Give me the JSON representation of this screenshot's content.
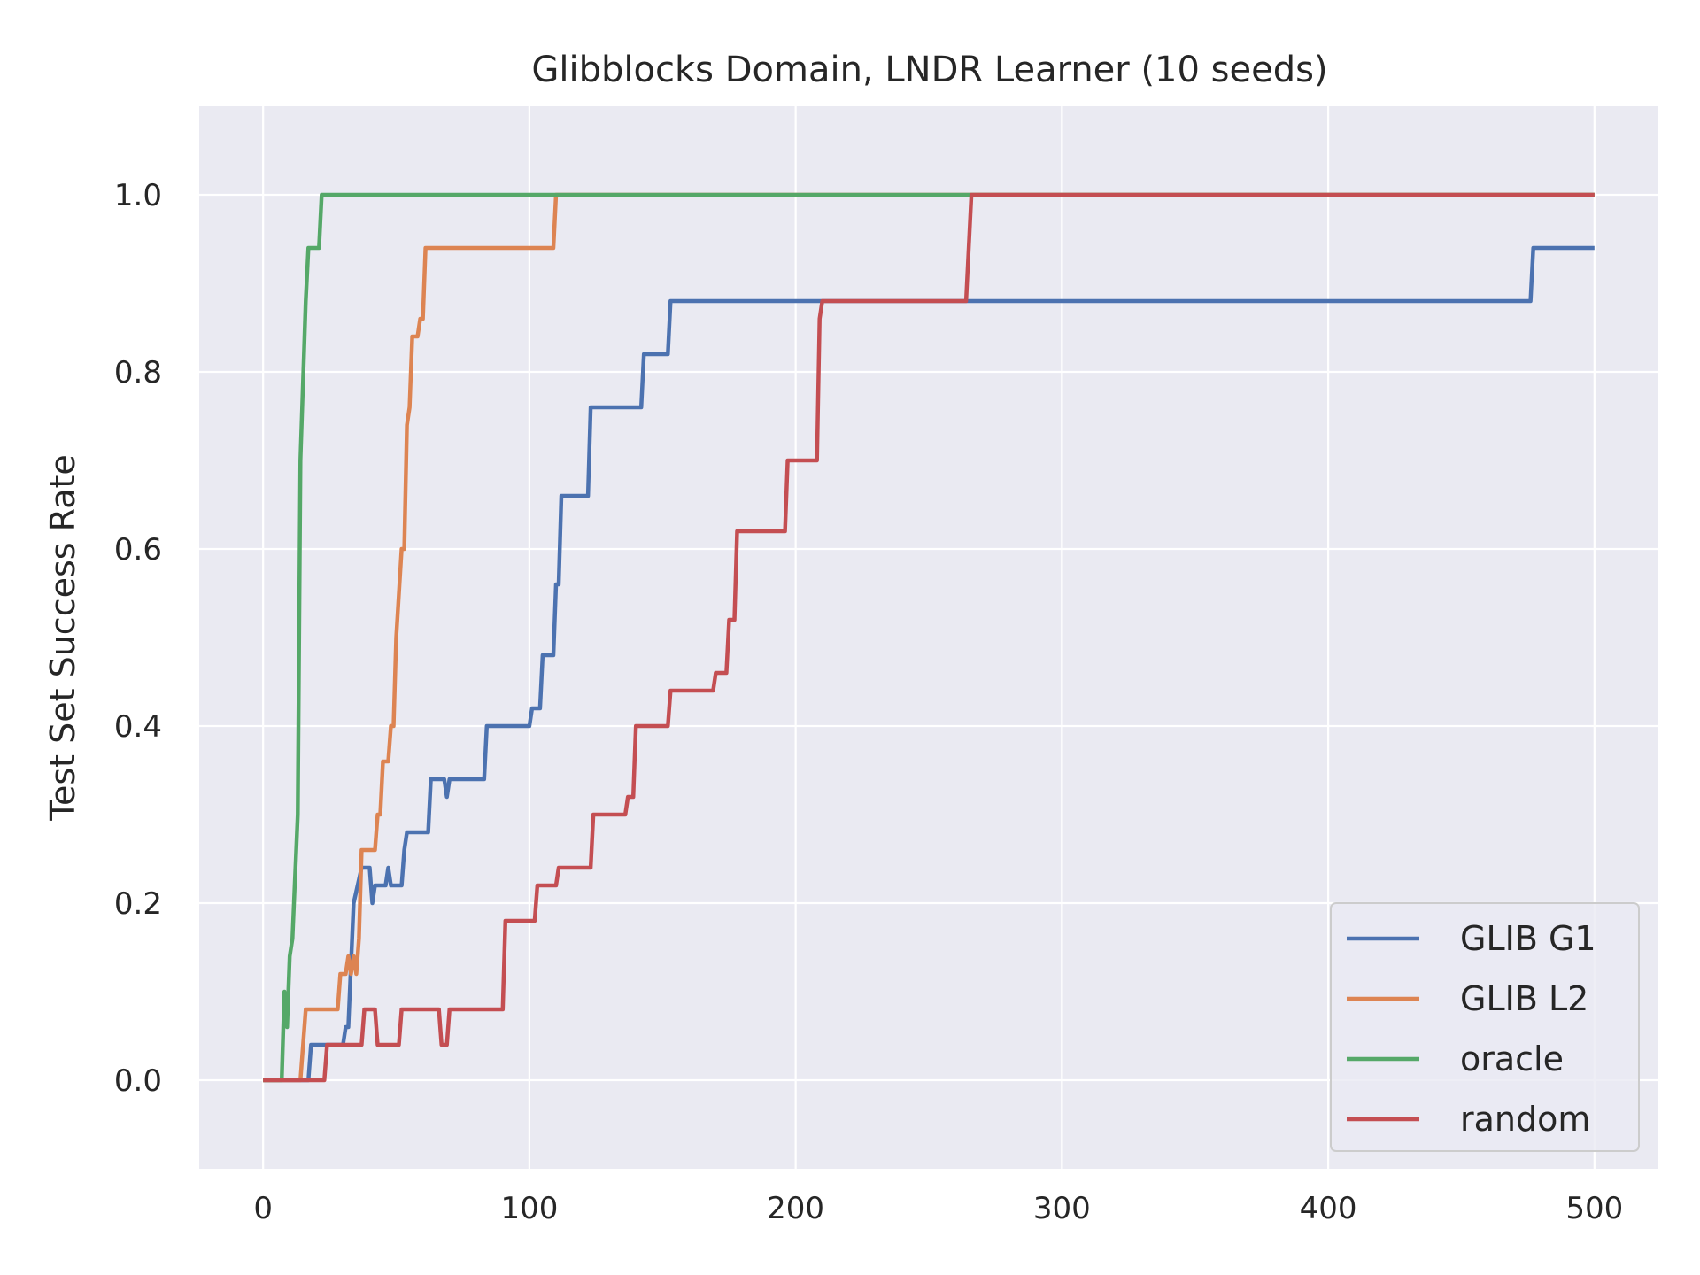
{
  "chart_data": {
    "type": "line",
    "title": "Glibblocks Domain, LNDR Learner (10 seeds)",
    "xlabel": "",
    "ylabel": "Test Set Success Rate",
    "xlim": [
      -24,
      524
    ],
    "ylim": [
      -0.1,
      1.1
    ],
    "xticks": [
      "0",
      "100",
      "200",
      "300",
      "400",
      "500"
    ],
    "yticks": [
      "0.0",
      "0.2",
      "0.4",
      "0.6",
      "0.8",
      "1.0"
    ],
    "grid": true,
    "legend_position": "bottom-right",
    "series": [
      {
        "name": "GLIB G1",
        "color": "#4c72b0",
        "points": [
          [
            0,
            0
          ],
          [
            17,
            0
          ],
          [
            18,
            0.04
          ],
          [
            30,
            0.04
          ],
          [
            31,
            0.06
          ],
          [
            32,
            0.06
          ],
          [
            34,
            0.2
          ],
          [
            37,
            0.24
          ],
          [
            40,
            0.24
          ],
          [
            41,
            0.2
          ],
          [
            42,
            0.22
          ],
          [
            46,
            0.22
          ],
          [
            47,
            0.24
          ],
          [
            48,
            0.22
          ],
          [
            52,
            0.22
          ],
          [
            53,
            0.26
          ],
          [
            54,
            0.28
          ],
          [
            62,
            0.28
          ],
          [
            63,
            0.34
          ],
          [
            68,
            0.34
          ],
          [
            69,
            0.32
          ],
          [
            70,
            0.34
          ],
          [
            83,
            0.34
          ],
          [
            84,
            0.4
          ],
          [
            100,
            0.4
          ],
          [
            101,
            0.42
          ],
          [
            104,
            0.42
          ],
          [
            105,
            0.48
          ],
          [
            109,
            0.48
          ],
          [
            110,
            0.56
          ],
          [
            111,
            0.56
          ],
          [
            112,
            0.66
          ],
          [
            122,
            0.66
          ],
          [
            123,
            0.76
          ],
          [
            142,
            0.76
          ],
          [
            143,
            0.82
          ],
          [
            152,
            0.82
          ],
          [
            153,
            0.88
          ],
          [
            476,
            0.88
          ],
          [
            477,
            0.94
          ],
          [
            500,
            0.94
          ]
        ]
      },
      {
        "name": "GLIB L2",
        "color": "#dd8452",
        "points": [
          [
            0,
            0
          ],
          [
            14,
            0
          ],
          [
            16,
            0.08
          ],
          [
            28,
            0.08
          ],
          [
            29,
            0.12
          ],
          [
            31,
            0.12
          ],
          [
            32,
            0.14
          ],
          [
            33,
            0.12
          ],
          [
            34,
            0.14
          ],
          [
            35,
            0.12
          ],
          [
            36,
            0.16
          ],
          [
            37,
            0.26
          ],
          [
            42,
            0.26
          ],
          [
            43,
            0.3
          ],
          [
            44,
            0.3
          ],
          [
            45,
            0.36
          ],
          [
            47,
            0.36
          ],
          [
            48,
            0.4
          ],
          [
            49,
            0.4
          ],
          [
            50,
            0.5
          ],
          [
            52,
            0.6
          ],
          [
            53,
            0.6
          ],
          [
            54,
            0.74
          ],
          [
            55,
            0.76
          ],
          [
            56,
            0.84
          ],
          [
            58,
            0.84
          ],
          [
            59,
            0.86
          ],
          [
            60,
            0.86
          ],
          [
            61,
            0.94
          ],
          [
            109,
            0.94
          ],
          [
            110,
            1.0
          ],
          [
            500,
            1.0
          ]
        ]
      },
      {
        "name": "oracle",
        "color": "#55a868",
        "points": [
          [
            0,
            0
          ],
          [
            7,
            0
          ],
          [
            8,
            0.1
          ],
          [
            9,
            0.06
          ],
          [
            10,
            0.14
          ],
          [
            11,
            0.16
          ],
          [
            13,
            0.3
          ],
          [
            14,
            0.7
          ],
          [
            16,
            0.88
          ],
          [
            17,
            0.94
          ],
          [
            21,
            0.94
          ],
          [
            22,
            1.0
          ],
          [
            500,
            1.0
          ]
        ]
      },
      {
        "name": "random",
        "color": "#c44e52",
        "points": [
          [
            0,
            0
          ],
          [
            23,
            0
          ],
          [
            24,
            0.04
          ],
          [
            37,
            0.04
          ],
          [
            38,
            0.08
          ],
          [
            42,
            0.08
          ],
          [
            43,
            0.04
          ],
          [
            51,
            0.04
          ],
          [
            52,
            0.08
          ],
          [
            66,
            0.08
          ],
          [
            67,
            0.04
          ],
          [
            69,
            0.04
          ],
          [
            70,
            0.08
          ],
          [
            90,
            0.08
          ],
          [
            91,
            0.18
          ],
          [
            102,
            0.18
          ],
          [
            103,
            0.22
          ],
          [
            110,
            0.22
          ],
          [
            111,
            0.24
          ],
          [
            123,
            0.24
          ],
          [
            124,
            0.3
          ],
          [
            136,
            0.3
          ],
          [
            137,
            0.32
          ],
          [
            139,
            0.32
          ],
          [
            140,
            0.4
          ],
          [
            152,
            0.4
          ],
          [
            153,
            0.44
          ],
          [
            169,
            0.44
          ],
          [
            170,
            0.46
          ],
          [
            174,
            0.46
          ],
          [
            175,
            0.52
          ],
          [
            177,
            0.52
          ],
          [
            178,
            0.62
          ],
          [
            196,
            0.62
          ],
          [
            197,
            0.7
          ],
          [
            208,
            0.7
          ],
          [
            209,
            0.86
          ],
          [
            210,
            0.88
          ],
          [
            264,
            0.88
          ],
          [
            266,
            1.0
          ],
          [
            500,
            1.0
          ]
        ]
      }
    ]
  }
}
